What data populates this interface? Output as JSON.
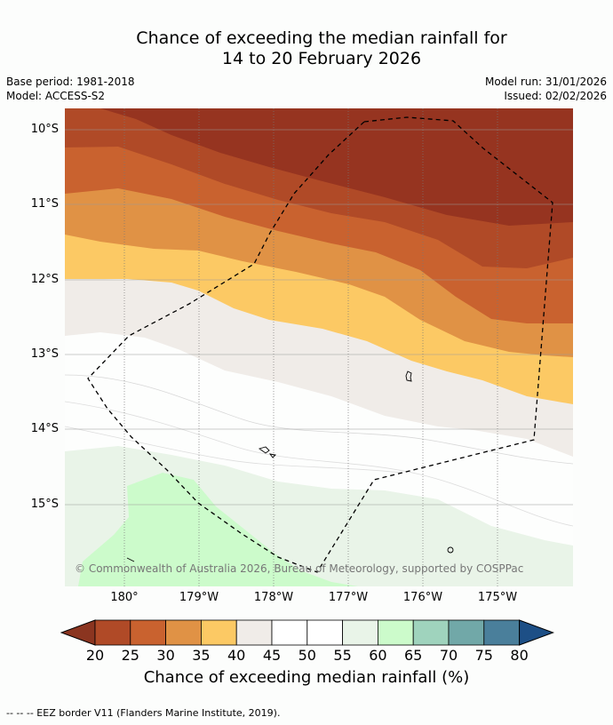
{
  "title": {
    "line1": "Chance of exceeding the median rainfall for",
    "line2": "14 to 20 February 2026"
  },
  "meta": {
    "base_period": "Base period: 1981-2018",
    "model": "Model: ACCESS-S2",
    "model_run": "Model run: 31/01/2026",
    "issued": "Issued: 02/02/2026"
  },
  "map": {
    "lat_labels": [
      "10°S",
      "11°S",
      "12°S",
      "13°S",
      "14°S",
      "15°S"
    ],
    "lon_labels": [
      "180°",
      "179°W",
      "178°W",
      "177°W",
      "176°W",
      "175°W"
    ],
    "copyright": "© Commonwealth of Australia 2026, Bureau of Meteorology, supported by COSPPac"
  },
  "colorbar": {
    "ticks": [
      "20",
      "25",
      "30",
      "35",
      "40",
      "45",
      "50",
      "55",
      "60",
      "65",
      "70",
      "75",
      "80"
    ],
    "colors": [
      "#b04a27",
      "#c9622f",
      "#e09245",
      "#fcc964",
      "#f0ece8",
      "#ffffff",
      "#ffffff",
      "#e9f4e8",
      "#ccfbcb",
      "#9fd3bd",
      "#71a8a8",
      "#4a7f9b"
    ],
    "under_color": "#8b3520",
    "over_color": "#1d4f86",
    "label": "Chance of exceeding median rainfall (%)"
  },
  "footer": {
    "legend": "--  --  -- EEZ border V11 (Flanders Marine Institute, 2019)."
  }
}
